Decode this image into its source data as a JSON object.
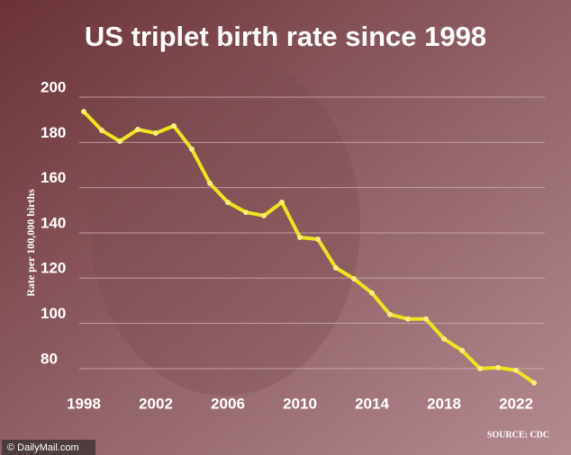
{
  "chart_data": {
    "type": "line",
    "title": "US triplet birth rate since 1998",
    "y_label": "Rate per 100,000 births",
    "source": "SOURCE: CDC",
    "watermark": "© DailyMail.com",
    "x": [
      1998,
      1999,
      2000,
      2001,
      2002,
      2003,
      2004,
      2005,
      2006,
      2007,
      2008,
      2009,
      2010,
      2011,
      2012,
      2013,
      2014,
      2015,
      2016,
      2017,
      2018,
      2019,
      2020,
      2021,
      2022,
      2023
    ],
    "series": [
      {
        "name": "Triplet birth rate",
        "color": "#f2e41c",
        "values": [
          193.6,
          185.3,
          180.5,
          185.7,
          184.1,
          187.3,
          177,
          161.9,
          153.5,
          149.1,
          147.6,
          153.5,
          138,
          137.2,
          124.5,
          119.7,
          113.4,
          103.9,
          101.9,
          101.9,
          93.1,
          88,
          80,
          80.4,
          79.2,
          73.7
        ]
      }
    ],
    "xlim": [
      1998,
      2023
    ],
    "xticks": [
      1998,
      2002,
      2006,
      2010,
      2014,
      2018,
      2022
    ],
    "ylim": [
      70,
      204
    ],
    "yticks": [
      80,
      100,
      120,
      140,
      160,
      180,
      200
    ],
    "grid": true
  }
}
